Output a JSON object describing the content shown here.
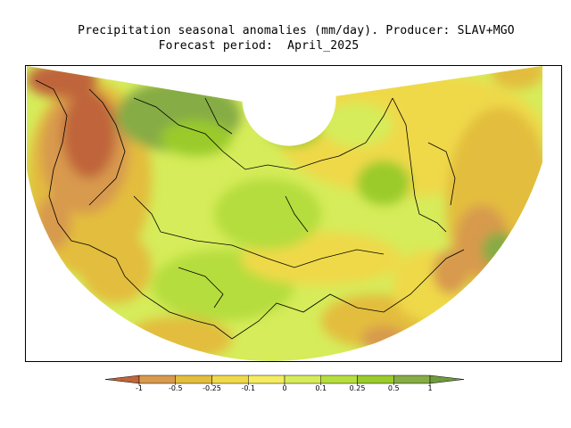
{
  "title": {
    "line1": "Precipitation seasonal anomalies (mm/day). Producer: SLAV+MGO",
    "line2": "Forecast period:  April_2025"
  },
  "colorbar": {
    "colors": [
      "#c0653a",
      "#d89a4e",
      "#e3bd3e",
      "#efd94a",
      "#f4ec62",
      "#d6ec5a",
      "#b5dd3e",
      "#9acb2c",
      "#86ac45",
      "#6e9a3c"
    ],
    "ticks": [
      "-1",
      "-0.5",
      "-0.25",
      "-0.1",
      "0",
      "0.1",
      "0.25",
      "0.5",
      "1"
    ]
  }
}
